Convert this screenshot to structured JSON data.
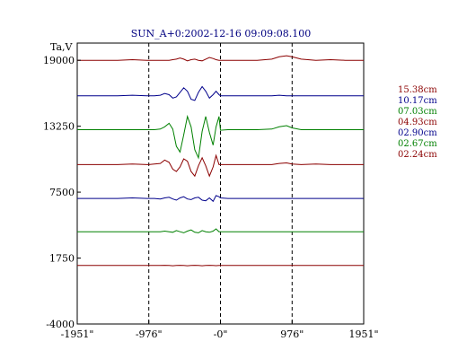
{
  "chart_data": {
    "type": "line",
    "title": "SUN_A+0:2002-12-16 09:09:08.100",
    "ylabel": "Ta,V",
    "xlabel": "",
    "ylim": [
      -4000,
      20500
    ],
    "xlim": [
      -1951,
      1951
    ],
    "x_ticks": [
      {
        "value": -1951,
        "label": "-1951\""
      },
      {
        "value": -976,
        "label": "-976\""
      },
      {
        "value": 0,
        "label": "-0\""
      },
      {
        "value": 976,
        "label": "976\""
      },
      {
        "value": 1951,
        "label": "1951\""
      }
    ],
    "y_ticks": [
      {
        "value": 19000,
        "label": "19000"
      },
      {
        "value": 13250,
        "label": "13250"
      },
      {
        "value": 7500,
        "label": "7500"
      },
      {
        "value": 1750,
        "label": "1750"
      },
      {
        "value": -4000,
        "label": "-4000"
      }
    ],
    "vertical_dashed_lines_at": [
      -976,
      0,
      976
    ],
    "x": [
      -1951,
      -1800,
      -1600,
      -1400,
      -1200,
      -1000,
      -976,
      -900,
      -820,
      -760,
      -700,
      -650,
      -600,
      -550,
      -500,
      -450,
      -400,
      -350,
      -300,
      -250,
      -200,
      -150,
      -100,
      -60,
      -20,
      0,
      100,
      300,
      500,
      700,
      800,
      900,
      976,
      1100,
      1300,
      1500,
      1700,
      1951
    ],
    "series": [
      {
        "name": "15.38cm",
        "color": "#8b0000",
        "values": [
          19000,
          19000,
          19000,
          19000,
          19050,
          19000,
          19000,
          19000,
          19000,
          19000,
          19000,
          19050,
          19100,
          19200,
          19100,
          18950,
          19050,
          19100,
          19000,
          18950,
          19100,
          19250,
          19150,
          19050,
          19000,
          19000,
          19000,
          19000,
          19000,
          19100,
          19300,
          19400,
          19300,
          19100,
          19000,
          19050,
          19000,
          19000
        ]
      },
      {
        "name": "10.17cm",
        "color": "#00008b",
        "values": [
          15900,
          15900,
          15900,
          15900,
          15950,
          15900,
          15900,
          15900,
          15950,
          16100,
          16000,
          15700,
          15800,
          16200,
          16600,
          16300,
          15600,
          15500,
          16200,
          16700,
          16300,
          15700,
          16000,
          16300,
          16000,
          15900,
          15900,
          15900,
          15900,
          15900,
          15950,
          15900,
          15900,
          15900,
          15900,
          15900,
          15900,
          15900
        ]
      },
      {
        "name": "07.03cm",
        "color": "#008000",
        "values": [
          12950,
          12950,
          12950,
          12950,
          12950,
          12950,
          12950,
          12950,
          13000,
          13200,
          13500,
          13000,
          11500,
          11000,
          12500,
          14100,
          13200,
          11200,
          10500,
          12800,
          14100,
          12700,
          11600,
          13200,
          14100,
          12900,
          12950,
          12950,
          12950,
          13000,
          13200,
          13300,
          13100,
          12950,
          12950,
          12950,
          12950,
          12950
        ]
      },
      {
        "name": "04.93cm",
        "color": "#8b0000",
        "values": [
          9900,
          9900,
          9900,
          9900,
          9950,
          9900,
          9900,
          9950,
          10000,
          10300,
          10100,
          9500,
          9300,
          9700,
          10400,
          10200,
          9300,
          8900,
          9800,
          10500,
          9800,
          8900,
          9700,
          10700,
          9900,
          9900,
          9900,
          9900,
          9900,
          9900,
          10000,
          10050,
          9950,
          9900,
          9950,
          9900,
          9900,
          9900
        ]
      },
      {
        "name": "02.90cm",
        "color": "#00008b",
        "values": [
          6950,
          6950,
          6950,
          6950,
          7000,
          6950,
          6950,
          6950,
          6900,
          7000,
          7050,
          6900,
          6800,
          7000,
          7100,
          6900,
          6850,
          7000,
          7050,
          6800,
          6750,
          7000,
          6700,
          7200,
          7100,
          7000,
          6950,
          6950,
          6950,
          6950,
          6950,
          6950,
          6950,
          6950,
          6950,
          6950,
          6950,
          6950
        ]
      },
      {
        "name": "02.67cm",
        "color": "#008000",
        "values": [
          4050,
          4050,
          4050,
          4050,
          4050,
          4050,
          4050,
          4050,
          4050,
          4100,
          4050,
          4000,
          4150,
          4050,
          3950,
          4100,
          4200,
          4000,
          3950,
          4150,
          4050,
          4000,
          4100,
          4300,
          4050,
          4050,
          4050,
          4050,
          4050,
          4050,
          4050,
          4050,
          4050,
          4050,
          4050,
          4050,
          4050,
          4050
        ]
      },
      {
        "name": "02.24cm",
        "color": "#8b0000",
        "values": [
          1100,
          1100,
          1100,
          1100,
          1100,
          1100,
          1100,
          1100,
          1100,
          1120,
          1100,
          1080,
          1100,
          1120,
          1100,
          1080,
          1100,
          1120,
          1100,
          1080,
          1100,
          1120,
          1100,
          1090,
          1100,
          1100,
          1100,
          1100,
          1100,
          1100,
          1110,
          1100,
          1100,
          1100,
          1100,
          1100,
          1100,
          1100
        ]
      }
    ]
  }
}
